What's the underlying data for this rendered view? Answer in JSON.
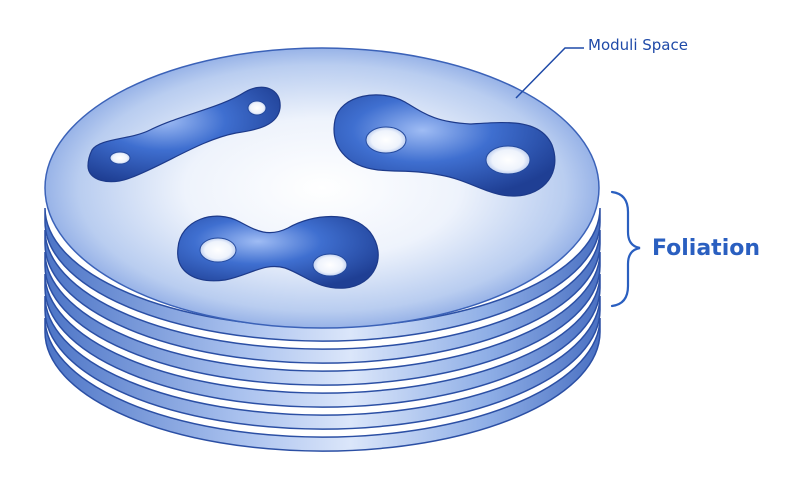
{
  "labels": {
    "moduli_space": "Moduli Space",
    "foliation": "Foliation"
  },
  "colors": {
    "disc_edge": "#1e3f94",
    "disc_fill": "#5f86d4",
    "surface_fill": "#3f6fd0",
    "accent_text": "#2a5fc0"
  },
  "diagram": {
    "layer_count": 6,
    "surfaces": [
      {
        "name": "genus-2-surface-thin",
        "holes": 2
      },
      {
        "name": "genus-2-surface-dumbbell",
        "holes": 2
      },
      {
        "name": "genus-2-surface-lower",
        "holes": 2
      }
    ]
  }
}
